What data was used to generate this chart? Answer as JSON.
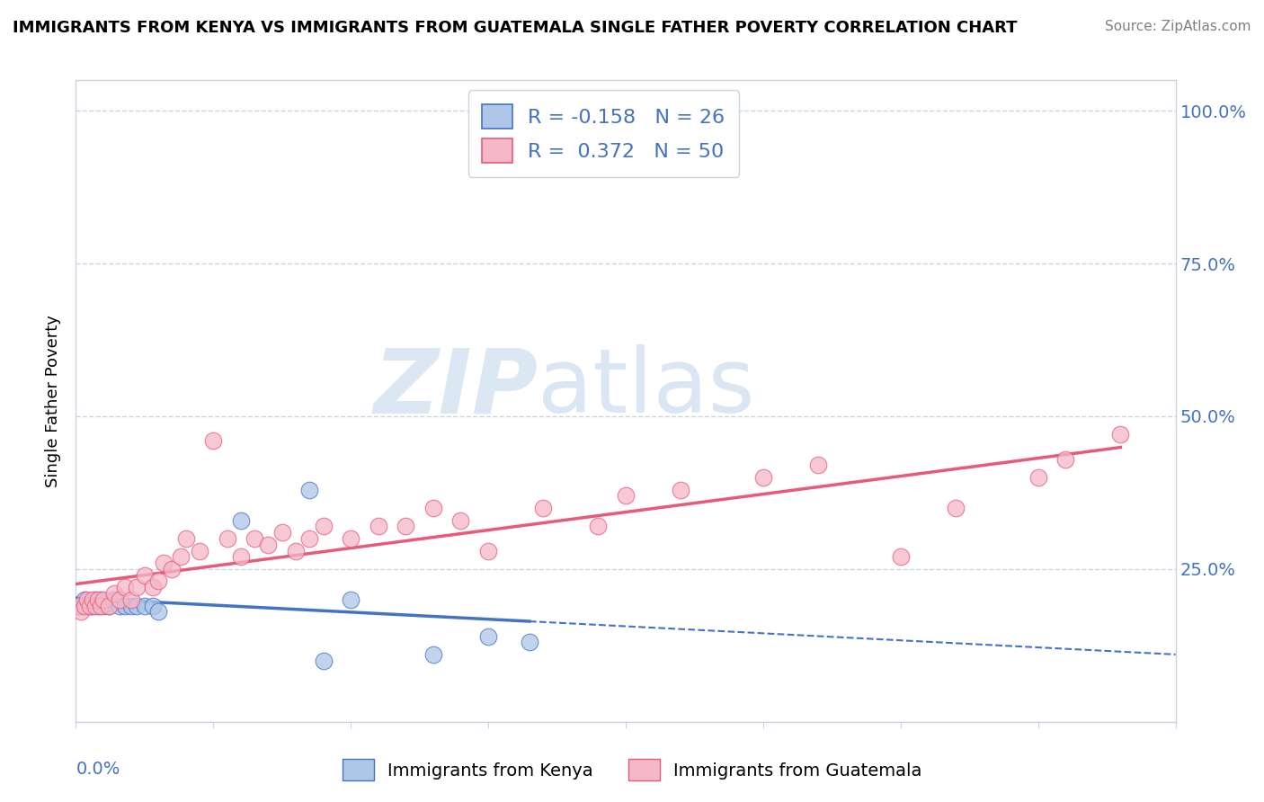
{
  "title": "IMMIGRANTS FROM KENYA VS IMMIGRANTS FROM GUATEMALA SINGLE FATHER POVERTY CORRELATION CHART",
  "source": "Source: ZipAtlas.com",
  "ylabel": "Single Father Poverty",
  "xlim": [
    0.0,
    0.4
  ],
  "ylim": [
    0.0,
    1.05
  ],
  "kenya_R": -0.158,
  "kenya_N": 26,
  "guatemala_R": 0.372,
  "guatemala_N": 50,
  "kenya_color": "#aec6e8",
  "guatemala_color": "#f4b8c8",
  "kenya_line_color": "#4472c4",
  "guatemala_line_color": "#e85a7a",
  "kenya_scatter_x": [
    0.001,
    0.002,
    0.003,
    0.004,
    0.005,
    0.006,
    0.007,
    0.008,
    0.009,
    0.01,
    0.012,
    0.014,
    0.016,
    0.018,
    0.02,
    0.022,
    0.025,
    0.028,
    0.03,
    0.06,
    0.085,
    0.09,
    0.1,
    0.13,
    0.15,
    0.165
  ],
  "kenya_scatter_y": [
    0.19,
    0.19,
    0.2,
    0.19,
    0.19,
    0.19,
    0.2,
    0.19,
    0.2,
    0.19,
    0.19,
    0.2,
    0.19,
    0.19,
    0.19,
    0.19,
    0.19,
    0.19,
    0.18,
    0.33,
    0.38,
    0.1,
    0.2,
    0.11,
    0.14,
    0.13
  ],
  "guatemala_scatter_x": [
    0.001,
    0.002,
    0.003,
    0.004,
    0.005,
    0.006,
    0.007,
    0.008,
    0.009,
    0.01,
    0.012,
    0.014,
    0.016,
    0.018,
    0.02,
    0.022,
    0.025,
    0.028,
    0.03,
    0.032,
    0.035,
    0.038,
    0.04,
    0.045,
    0.05,
    0.055,
    0.06,
    0.065,
    0.07,
    0.075,
    0.08,
    0.085,
    0.09,
    0.1,
    0.11,
    0.12,
    0.13,
    0.14,
    0.15,
    0.17,
    0.19,
    0.2,
    0.22,
    0.25,
    0.27,
    0.3,
    0.32,
    0.35,
    0.36,
    0.38
  ],
  "guatemala_scatter_y": [
    0.19,
    0.18,
    0.19,
    0.2,
    0.19,
    0.2,
    0.19,
    0.2,
    0.19,
    0.2,
    0.19,
    0.21,
    0.2,
    0.22,
    0.2,
    0.22,
    0.24,
    0.22,
    0.23,
    0.26,
    0.25,
    0.27,
    0.3,
    0.28,
    0.46,
    0.3,
    0.27,
    0.3,
    0.29,
    0.31,
    0.28,
    0.3,
    0.32,
    0.3,
    0.32,
    0.32,
    0.35,
    0.33,
    0.28,
    0.35,
    0.32,
    0.37,
    0.38,
    0.4,
    0.42,
    0.27,
    0.35,
    0.4,
    0.43,
    0.47
  ],
  "watermark_zip": "ZIP",
  "watermark_atlas": "atlas",
  "background_color": "#ffffff",
  "plot_bg_color": "#ffffff",
  "grid_color": "#c8d4e0",
  "tick_color": "#4472c4",
  "legend_R_color": "#e85a7a",
  "ytick_vals": [
    0.0,
    0.25,
    0.5,
    0.75,
    1.0
  ],
  "ytick_labels_right": [
    "",
    "25.0%",
    "50.0%",
    "75.0%",
    "100.0%"
  ]
}
